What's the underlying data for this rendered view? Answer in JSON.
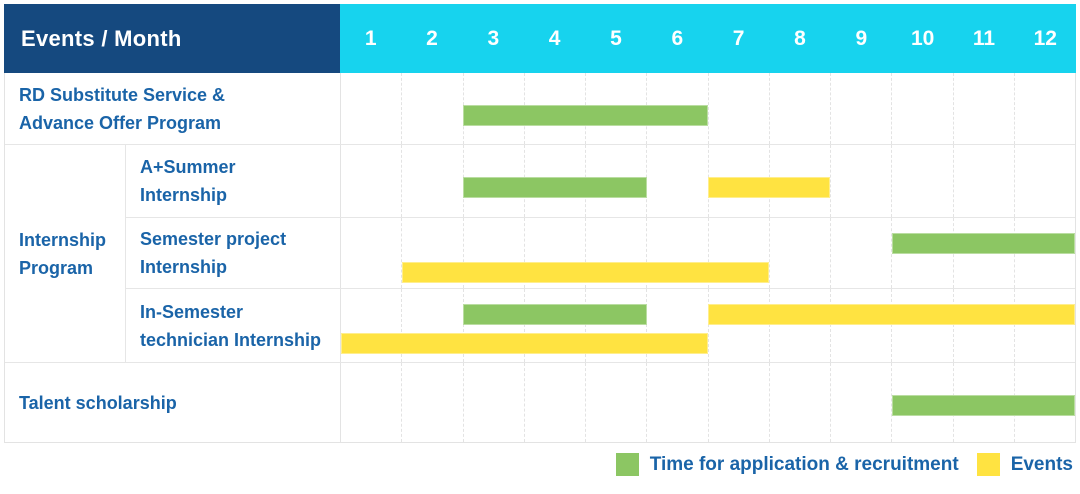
{
  "table": {
    "header_label": "Events / Month"
  },
  "colors": {
    "header_bg": "#15497F",
    "month_header_bg": "#17D3EE",
    "header_text": "#FFFFFF",
    "label_text": "#1A64A8",
    "application_green": "#8CC663",
    "events_yellow": "#FFE341",
    "grid_line": "#E3E3E3"
  },
  "chart_data": {
    "type": "bar",
    "subtype": "gantt-timeline",
    "title": "Events / Month",
    "x_categories": [
      "1",
      "2",
      "3",
      "4",
      "5",
      "6",
      "7",
      "8",
      "9",
      "10",
      "11",
      "12"
    ],
    "x_axis_label": "Month",
    "grid": true,
    "legend_position": "bottom-right",
    "rows": [
      {
        "group": "",
        "label_lines": [
          "RD Substitute Service &",
          "Advance Offer Program"
        ],
        "bars": [
          {
            "series": "application",
            "start_month": 3,
            "end_month": 6,
            "lane": "single"
          }
        ]
      },
      {
        "group": "Internship Program",
        "label_lines": [
          "A+Summer",
          "Internship"
        ],
        "bars": [
          {
            "series": "application",
            "start_month": 3,
            "end_month": 5,
            "lane": "single"
          },
          {
            "series": "events",
            "start_month": 7,
            "end_month": 8,
            "lane": "single"
          }
        ]
      },
      {
        "group": "Internship Program",
        "label_lines": [
          "Semester project",
          "Internship"
        ],
        "bars": [
          {
            "series": "application",
            "start_month": 10,
            "end_month": 12,
            "lane": "top"
          },
          {
            "series": "events",
            "start_month": 2,
            "end_month": 7,
            "lane": "bottom"
          }
        ]
      },
      {
        "group": "Internship Program",
        "label_lines": [
          "In-Semester",
          "technician Internship"
        ],
        "bars": [
          {
            "series": "application",
            "start_month": 3,
            "end_month": 5,
            "lane": "top"
          },
          {
            "series": "events",
            "start_month": 7,
            "end_month": 12,
            "lane": "top"
          },
          {
            "series": "events",
            "start_month": 1,
            "end_month": 6,
            "lane": "bottom"
          }
        ]
      },
      {
        "group": "",
        "label_lines": [
          "Talent scholarship"
        ],
        "bars": [
          {
            "series": "application",
            "start_month": 10,
            "end_month": 12,
            "lane": "single"
          }
        ]
      }
    ],
    "legend": [
      {
        "series": "application",
        "label": "Time for application & recruitment",
        "color": "#8CC663"
      },
      {
        "series": "events",
        "label": "Events",
        "color": "#FFE341"
      }
    ]
  }
}
